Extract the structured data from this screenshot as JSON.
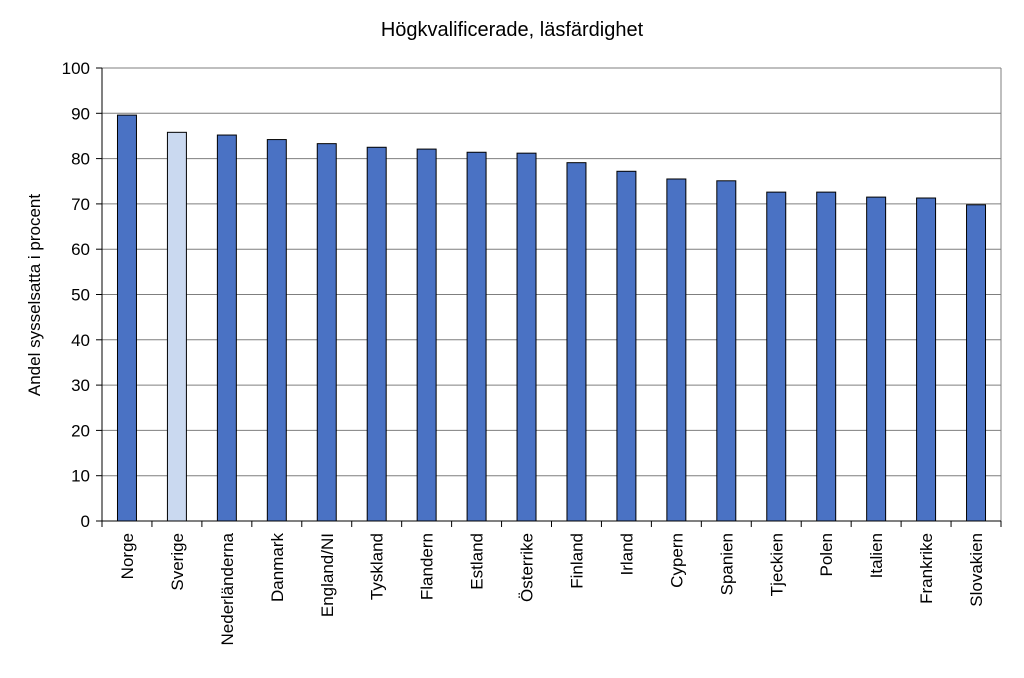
{
  "chart_data": {
    "type": "bar",
    "title": "Högkvalificerade, läsfärdighet",
    "xlabel": "",
    "ylabel": "Andel sysselsatta i procent",
    "ylim": [
      0,
      100
    ],
    "yticks": [
      0,
      10,
      20,
      30,
      40,
      50,
      60,
      70,
      80,
      90,
      100
    ],
    "grid": true,
    "categories": [
      "Norge",
      "Sverige",
      "Nederländerna",
      "Danmark",
      "England/NI",
      "Tyskland",
      "Flandern",
      "Estland",
      "Österrike",
      "Finland",
      "Irland",
      "Cypern",
      "Spanien",
      "Tjeckien",
      "Polen",
      "Italien",
      "Frankrike",
      "Slovakien"
    ],
    "values": [
      89.6,
      85.8,
      85.2,
      84.2,
      83.3,
      82.5,
      82.1,
      81.4,
      81.2,
      79.1,
      77.2,
      75.5,
      75.1,
      72.6,
      72.6,
      71.5,
      71.3,
      69.8
    ],
    "colors": {
      "default": "#4a72c4",
      "highlight": "#cad9f0",
      "gridline": "#7f7f7f",
      "axis": "#000000"
    },
    "highlight_category": "Sverige"
  }
}
